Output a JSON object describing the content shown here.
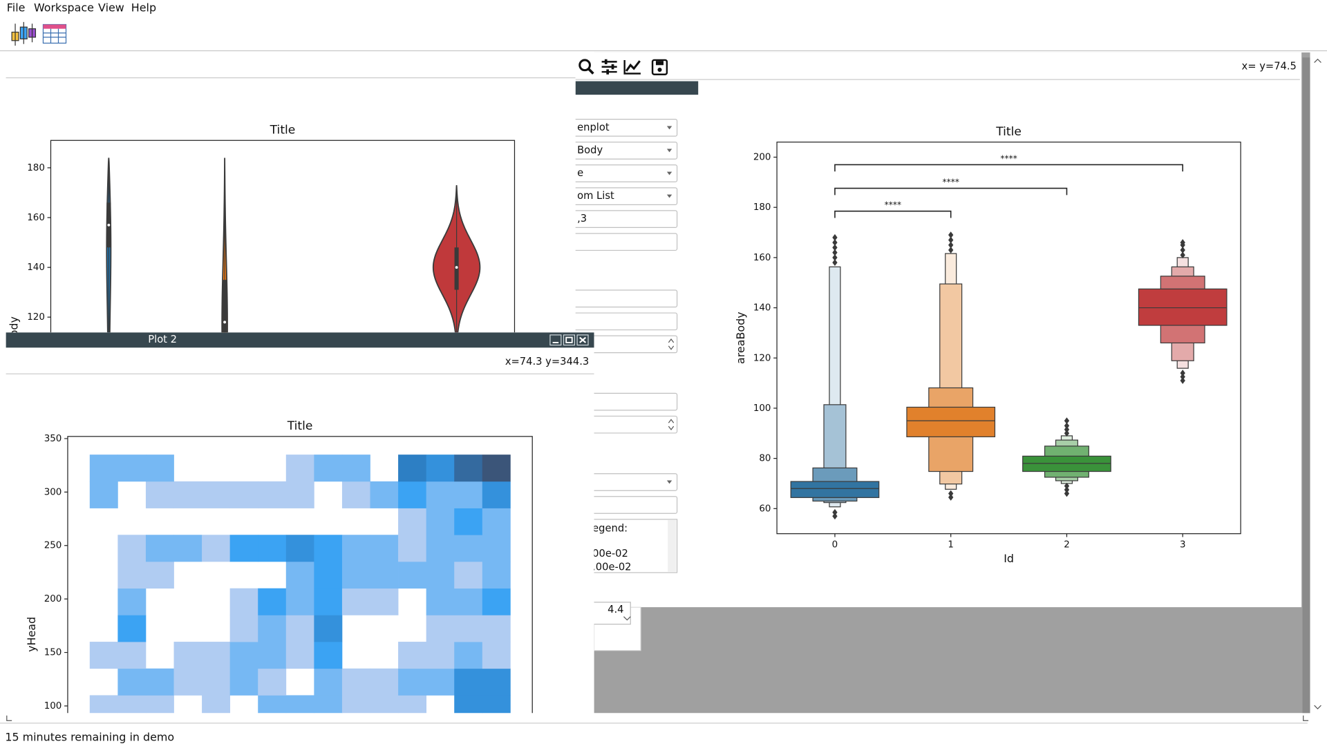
{
  "menu": [
    "File",
    "Workspace",
    "View",
    "Help"
  ],
  "main_window": {
    "coords": "x= y=74.5",
    "form": {
      "fields": [
        "enplot",
        "Body",
        "e",
        "om List",
        ",3"
      ],
      "legend_lines": [
        "egend:",
        "00e-02",
        ".00e-02"
      ],
      "spin": "4.4"
    }
  },
  "plot2_window": {
    "title": "Plot 2",
    "coords": "x=74.3 y=344.3"
  },
  "status": "15 minutes remaining in demo",
  "chart_data": [
    {
      "type": "violin",
      "title": "Title",
      "ylabel": "areaBody",
      "x": [
        0,
        1,
        3
      ],
      "xlim": [
        -0.5,
        3.5
      ],
      "ylim": [
        32,
        191
      ],
      "yticks": [
        120,
        140,
        160,
        180
      ],
      "series": [
        {
          "color": "#1f77b4",
          "min": 40,
          "q1": 148,
          "median": 157,
          "q3": 166,
          "max": 184
        },
        {
          "color": "#ff7f0e",
          "min": 40,
          "q1": 105,
          "median": 118,
          "q3": 135,
          "max": 184
        },
        {
          "color": "#c0393b",
          "min": 107,
          "q1": 131,
          "median": 140,
          "q3": 148,
          "max": 173
        }
      ]
    },
    {
      "type": "boxen",
      "title": "Title",
      "xlabel": "Id",
      "ylabel": "areaBody",
      "categories": [
        "0",
        "1",
        "2",
        "3"
      ],
      "ylim": [
        50,
        206
      ],
      "yticks": [
        60,
        80,
        100,
        120,
        140,
        160,
        180,
        200
      ],
      "groups": [
        {
          "color": "#3274a1",
          "median": 68,
          "levels": [
            [
              64.4,
              70.8
            ],
            [
              63,
              76.2
            ],
            [
              62.4,
              101.4
            ],
            [
              60.7,
              156.3
            ]
          ],
          "outliers": [
            57,
            58.5,
            158,
            160,
            162,
            164,
            166,
            168
          ]
        },
        {
          "color": "#e1812c",
          "median": 95,
          "levels": [
            [
              88.6,
              100.4
            ],
            [
              74.8,
              108.1
            ],
            [
              69.8,
              149.5
            ],
            [
              67.7,
              161.6
            ]
          ],
          "outliers": [
            64.5,
            66,
            163,
            165,
            167,
            169
          ]
        },
        {
          "color": "#3a923a",
          "median": 78,
          "levels": [
            [
              74.8,
              80.9
            ],
            [
              72.5,
              84.9
            ],
            [
              71.1,
              87.3
            ],
            [
              70,
              89
            ]
          ],
          "outliers": [
            66,
            67.5,
            69,
            90,
            91.5,
            93,
            95
          ]
        },
        {
          "color": "#c03d3e",
          "median": 140,
          "levels": [
            [
              133,
              147.5
            ],
            [
              126,
              152.6
            ],
            [
              118.9,
              156.3
            ],
            [
              115.9,
              160
            ]
          ],
          "outliers": [
            111,
            112.5,
            114,
            161,
            163,
            165,
            166
          ]
        }
      ],
      "annotations": [
        {
          "text": "****",
          "pair": [
            0,
            1
          ],
          "y": 178.5
        },
        {
          "text": "****",
          "pair": [
            0,
            2
          ],
          "y": 187.6
        },
        {
          "text": "****",
          "pair": [
            0,
            3
          ],
          "y": 197
        }
      ]
    },
    {
      "type": "heatmap",
      "title": "Title",
      "ylabel": "yHead",
      "ylim": [
        72,
        352
      ],
      "yticks": [
        100,
        150,
        200,
        250,
        300,
        350
      ],
      "categories": [
        null,
        null,
        null,
        null,
        null,
        null,
        null,
        null,
        null,
        null,
        null,
        null,
        null,
        null,
        null
      ],
      "ybins": [
        85,
        110,
        135,
        160,
        185,
        210,
        235,
        260,
        285,
        310,
        335
      ],
      "cmap": [
        "#b0ccf2",
        "#3ba3f3",
        "#2d7fc4",
        "#3b5579"
      ],
      "counts": [
        [
          1,
          1,
          1,
          0,
          1,
          0,
          2,
          2,
          2,
          1,
          1,
          1,
          0,
          4,
          4
        ],
        [
          0,
          2,
          2,
          1,
          1,
          2,
          1,
          0,
          2,
          1,
          1,
          2,
          2,
          4,
          4
        ],
        [
          1,
          1,
          0,
          1,
          1,
          2,
          2,
          1,
          3,
          0,
          0,
          1,
          1,
          2,
          1
        ],
        [
          0,
          3,
          0,
          0,
          0,
          1,
          2,
          1,
          4,
          0,
          0,
          0,
          1,
          1,
          1
        ],
        [
          0,
          2,
          0,
          0,
          0,
          1,
          3,
          2,
          3,
          1,
          1,
          0,
          2,
          2,
          3
        ],
        [
          0,
          1,
          1,
          0,
          0,
          0,
          0,
          2,
          3,
          2,
          2,
          2,
          2,
          1,
          2
        ],
        [
          0,
          1,
          2,
          2,
          1,
          3,
          3,
          4,
          3,
          2,
          2,
          1,
          2,
          2,
          2
        ],
        [
          0,
          0,
          0,
          0,
          0,
          0,
          0,
          0,
          0,
          0,
          0,
          1,
          2,
          3,
          2
        ],
        [
          2,
          0,
          1,
          1,
          1,
          1,
          1,
          1,
          0,
          1,
          2,
          3,
          2,
          2,
          4
        ],
        [
          2,
          2,
          2,
          0,
          0,
          0,
          0,
          1,
          2,
          2,
          0,
          5,
          4,
          6,
          7
        ]
      ]
    }
  ]
}
